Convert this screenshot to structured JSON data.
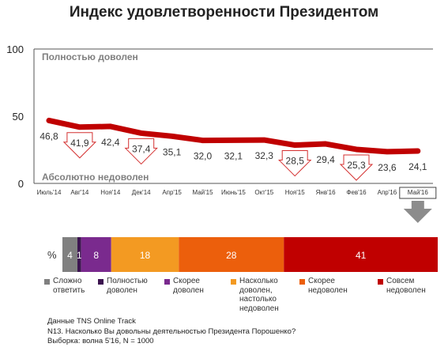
{
  "chart_data": [
    {
      "type": "line",
      "title": "Индекс удовлетворенности Президентом",
      "top_annotation": "Полностью доволен",
      "bottom_annotation": "Абсолютно недоволен",
      "ylim": [
        0,
        100
      ],
      "yticks": [
        "0",
        "50",
        "100"
      ],
      "grid": false,
      "x": [
        "Июль'14",
        "Авг'14",
        "Ноя'14",
        "Дек'14",
        "Апр'15",
        "Май'15",
        "Июнь'15",
        "Окт'15",
        "Ноя'15",
        "Янв'16",
        "Фев'16",
        "Апр'16",
        "Май'16"
      ],
      "values": [
        46.8,
        41.9,
        42.4,
        37.4,
        35.1,
        32.0,
        32.1,
        32.3,
        28.5,
        29.4,
        25.3,
        23.6,
        24.1
      ],
      "value_labels": [
        "46,8",
        "41,9",
        "42,4",
        "37,4",
        "35,1",
        "32,0",
        "32,1",
        "32,3",
        "28,5",
        "29,4",
        "25,3",
        "23,6",
        "24,1"
      ],
      "decline_markers": [
        "Авг'14",
        "Дек'14",
        "Ноя'15",
        "Фев'16"
      ],
      "highlighted_category": "Май'16",
      "line_color": "#c00000",
      "marker_color": "#e03030"
    },
    {
      "type": "bar",
      "stacked": true,
      "unit_label": "%",
      "series": [
        {
          "name": "Сложно ответить",
          "value": 4,
          "color": "#808080"
        },
        {
          "name": "Полностью доволен",
          "value": 1,
          "color": "#3c1450"
        },
        {
          "name": "Скорее доволен",
          "value": 8,
          "color": "#7a2a8e"
        },
        {
          "name": "Насколько доволен, настолько недоволен",
          "value": 18,
          "color": "#f39a22"
        },
        {
          "name": "Скорее недоволен",
          "value": 28,
          "color": "#ec5f0c"
        },
        {
          "name": "Совсем недоволен",
          "value": 41,
          "color": "#c00000"
        }
      ]
    }
  ],
  "legend": [
    {
      "label": "Сложно\nответить",
      "color": "#808080"
    },
    {
      "label": "Полностью\nдоволен",
      "color": "#3c1450"
    },
    {
      "label": "Скорее\nдоволен",
      "color": "#7a2a8e"
    },
    {
      "label": "Насколько\nдоволен,\nнастолько\nнедоволен",
      "color": "#f39a22"
    },
    {
      "label": "Скорее\nнедоволен",
      "color": "#ec5f0c"
    },
    {
      "label": "Совсем\nнедоволен",
      "color": "#c00000"
    }
  ],
  "source": {
    "line1": "Данные TNS Online Track",
    "line2": "N13. Насколько Вы довольны деятельностью Президента Порошенко?",
    "line3": "Выборка: волна 5'16, N = 1000"
  }
}
